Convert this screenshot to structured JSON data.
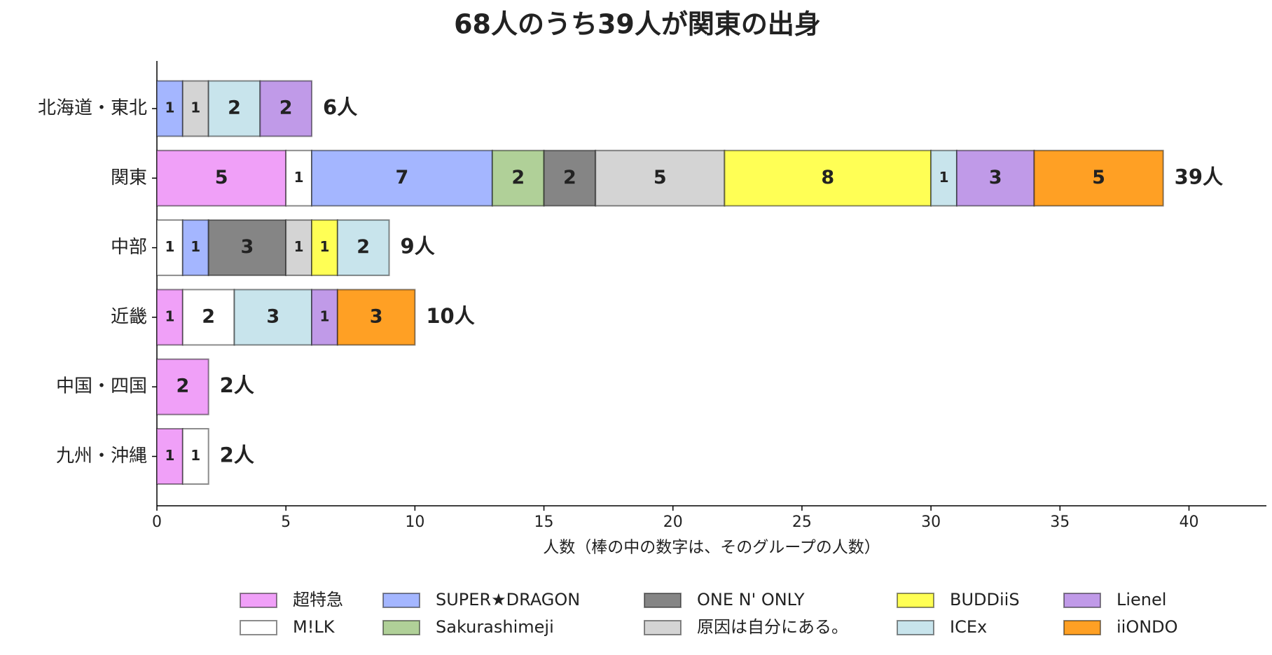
{
  "chart_data": {
    "type": "stacked-barh",
    "title": "68人のうち39人が関東の出身",
    "x_label": "人数（棒の中の数字は、そのグループの人数）",
    "categories": [
      "北海道・東北",
      "関東",
      "中部",
      "近畿",
      "中国・四国",
      "九州・沖縄"
    ],
    "total_labels": [
      "6人",
      "39人",
      "9人",
      "10人",
      "2人",
      "2人"
    ],
    "series": [
      {
        "name": "超特急",
        "color": "#f0a0f8",
        "values": [
          0,
          5,
          0,
          1,
          2,
          1
        ]
      },
      {
        "name": "M!LK",
        "color": "#ffffff",
        "values": [
          0,
          1,
          1,
          2,
          0,
          1
        ]
      },
      {
        "name": "SUPER★DRAGON",
        "color": "#a4b6ff",
        "values": [
          1,
          7,
          1,
          0,
          0,
          0
        ]
      },
      {
        "name": "Sakurashimeji",
        "color": "#b0d098",
        "values": [
          0,
          2,
          0,
          0,
          0,
          0
        ]
      },
      {
        "name": "ONE N' ONLY",
        "color": "#858585",
        "values": [
          0,
          2,
          3,
          0,
          0,
          0
        ]
      },
      {
        "name": "原因は自分にある。",
        "color": "#d4d4d4",
        "values": [
          1,
          5,
          1,
          0,
          0,
          0
        ]
      },
      {
        "name": "BUDDiiS",
        "color": "#ffff55",
        "values": [
          0,
          8,
          1,
          0,
          0,
          0
        ]
      },
      {
        "name": "ICEx",
        "color": "#c8e4ec",
        "values": [
          2,
          1,
          2,
          3,
          0,
          0
        ]
      },
      {
        "name": "Lienel",
        "color": "#c09ae8",
        "values": [
          2,
          3,
          0,
          1,
          0,
          0
        ]
      },
      {
        "name": "iiONDO",
        "color": "#ffa024",
        "values": [
          0,
          5,
          0,
          3,
          0,
          0
        ]
      }
    ],
    "xlim": [
      0,
      43
    ],
    "xticks": [
      0,
      5,
      10,
      15,
      20,
      25,
      30,
      35,
      40
    ],
    "grid": false
  }
}
